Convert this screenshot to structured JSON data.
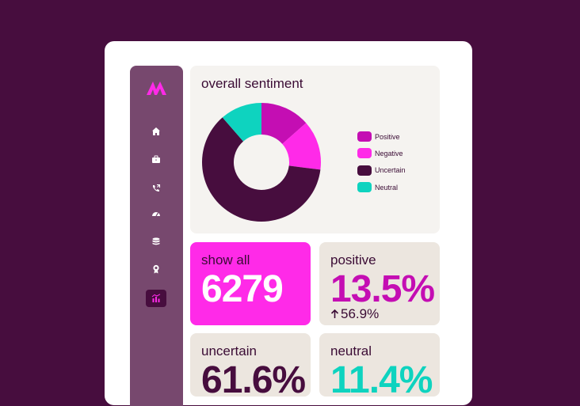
{
  "colors": {
    "background": "#470d3e",
    "positive": "#c40eb3",
    "negative": "#ff2ae8",
    "uncertain": "#470d3e",
    "neutral": "#0ed3bf"
  },
  "sidebar": {
    "items": [
      {
        "icon": "home-icon"
      },
      {
        "icon": "briefcase-icon"
      },
      {
        "icon": "phone-icon"
      },
      {
        "icon": "gauge-icon"
      },
      {
        "icon": "database-icon"
      },
      {
        "icon": "award-icon"
      },
      {
        "icon": "chart-icon",
        "active": true
      }
    ]
  },
  "sentiment": {
    "title": "overall sentiment"
  },
  "chart_data": {
    "type": "pie",
    "title": "overall sentiment",
    "categories": [
      "Positive",
      "Negative",
      "Uncertain",
      "Neutral"
    ],
    "values": [
      13.5,
      13.5,
      61.6,
      11.4
    ],
    "legend_position": "right"
  },
  "legend": [
    {
      "label": "Positive"
    },
    {
      "label": "Negative"
    },
    {
      "label": "Uncertain"
    },
    {
      "label": "Neutral"
    }
  ],
  "stats": {
    "show_all": {
      "label": "show all",
      "value": "6279"
    },
    "positive": {
      "label": "positive",
      "value": "13.5%",
      "delta": "56.9%"
    },
    "uncertain": {
      "label": "uncertain",
      "value": "61.6%"
    },
    "neutral": {
      "label": "neutral",
      "value": "11.4%"
    }
  }
}
